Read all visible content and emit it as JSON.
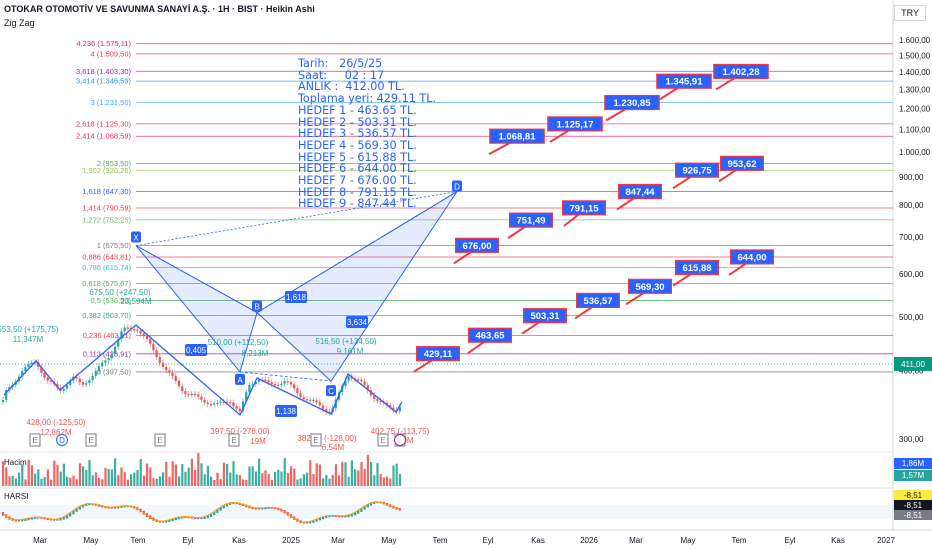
{
  "header": {
    "title": "OTOKAR OTOMOTİV VE SAVUNMA SANAYİ A.Ş. · 1H · BIST · Heikin Ashi",
    "indicator": "Zig Zag",
    "currency": "TRY"
  },
  "info_lines": [
    "Tarih:   26/5/25",
    "Saat:     02 : 17",
    "ANLIK :  412.00 TL.",
    "Toplama yeri: 429.11 TL.",
    "HEDEF 1 - 463.65 TL.",
    "HEDEF 2 - 503.31 TL.",
    "HEDEF 3 - 536.57 TL.",
    "HEDEF 4 - 569.30 TL.",
    "HEDEF 5 - 615.88 TL.",
    "HEDEF 6 - 644.00 TL.",
    "HEDEF 7 - 676.00 TL.",
    "HEDEF 8 - 791.15 TL.",
    "HEDEF 9 - 847.44 TL."
  ],
  "colors": {
    "up": "#26a69a",
    "down": "#ef5350",
    "target_fill": "#2962ff",
    "target_border": "#f23645",
    "harmonic": "#2962ff",
    "last_price": "#089981"
  },
  "chart_data": {
    "type": "candlestick",
    "scale": "log",
    "ylim": [
      280,
      1700
    ],
    "y_ticks": [
      "1.600,00",
      "1.500,00",
      "1.400,00",
      "1.300,00",
      "1.200,00",
      "1.100,00",
      "1.000,00",
      "900,00",
      "800,00",
      "700,00",
      "600,00",
      "500,00",
      "400,00",
      "300,00"
    ],
    "y_tick_values": [
      1600,
      1500,
      1400,
      1300,
      1200,
      1100,
      1000,
      900,
      800,
      700,
      600,
      500,
      400,
      300
    ],
    "x_ticks": [
      "Mar",
      "May",
      "Tem",
      "Eyl",
      "Kas",
      "2025",
      "Mar",
      "May",
      "Tem",
      "Eyl",
      "Kas",
      "2026",
      "Mar",
      "May",
      "Tem",
      "Eyl",
      "Kas",
      "2027"
    ],
    "last_price": 411,
    "last_price_label": "411,00",
    "fib_levels": [
      {
        "label": "4,236 (1.575,11)",
        "value": 1575.11,
        "color": "#e91e63"
      },
      {
        "label": "4 (1.509,50)",
        "value": 1509.5,
        "color": "#f23645"
      },
      {
        "label": "3,618 (1.403,30)",
        "value": 1403.3,
        "color": "#9c27b0"
      },
      {
        "label": "3,414 (1.346,59)",
        "value": 1346.59,
        "color": "#2196f3"
      },
      {
        "label": "3 (1.231,50)",
        "value": 1231.5,
        "color": "#42a5f5"
      },
      {
        "label": "2,618 (1.125,30)",
        "value": 1125.3,
        "color": "#f23645"
      },
      {
        "label": "2,414 (1.068,59)",
        "value": 1068.59,
        "color": "#e91e63"
      },
      {
        "label": "2 (953,50)",
        "value": 953.5,
        "color": "#4caf50"
      },
      {
        "label": "1,902 (926,26)",
        "value": 926.26,
        "color": "#8bc34a"
      },
      {
        "label": "1,618 (847,30)",
        "value": 847.3,
        "color": "#2962ff"
      },
      {
        "label": "1,414 (790,59)",
        "value": 790.59,
        "color": "#f23645"
      },
      {
        "label": "1,272 (752,25)",
        "value": 752.25,
        "color": "#66bb6a"
      },
      {
        "label": "1 (675,50)",
        "value": 675.5,
        "color": "#787b86"
      },
      {
        "label": "0,886 (643,81)",
        "value": 643.81,
        "color": "#f23645"
      },
      {
        "label": "0,786 (615,74)",
        "value": 615.74,
        "color": "#26c6da"
      },
      {
        "label": "0,618 (575,67)",
        "value": 575.67,
        "color": "#4caf50"
      },
      {
        "label": "0,5 (536,50)",
        "value": 536.5,
        "color": "#4caf50"
      },
      {
        "label": "0,382 (503,70)",
        "value": 503.7,
        "color": "#26a69a"
      },
      {
        "label": "0,236 (463,11)",
        "value": 463.11,
        "color": "#f23645"
      },
      {
        "label": "0,113 (428,91)",
        "value": 428.91,
        "color": "#9c27b0"
      },
      {
        "label": "0 (397,50)",
        "value": 397.5,
        "color": "#787b86"
      }
    ],
    "targets": [
      {
        "label": "429,11",
        "value": 429.11
      },
      {
        "label": "463,65",
        "value": 463.65
      },
      {
        "label": "503,31",
        "value": 503.31
      },
      {
        "label": "536,57",
        "value": 536.57
      },
      {
        "label": "569,30",
        "value": 569.3
      },
      {
        "label": "615,88",
        "value": 615.88
      },
      {
        "label": "644,00",
        "value": 644.0
      },
      {
        "label": "676,00",
        "value": 676.0
      },
      {
        "label": "751,49",
        "value": 751.49
      },
      {
        "label": "791,15",
        "value": 791.15
      },
      {
        "label": "847,44",
        "value": 847.44
      },
      {
        "label": "926,75",
        "value": 926.75
      },
      {
        "label": "953,62",
        "value": 953.62
      },
      {
        "label": "1.068,81",
        "value": 1068.81
      },
      {
        "label": "1.125,17",
        "value": 1125.17
      },
      {
        "label": "1.230,85",
        "value": 1230.85
      },
      {
        "label": "1.345,91",
        "value": 1345.91
      },
      {
        "label": "1.402,28",
        "value": 1402.28
      }
    ],
    "pivots": [
      {
        "name": "X",
        "value": 675.5
      },
      {
        "name": "A",
        "value": 397.5
      },
      {
        "name": "B",
        "value": 510.0
      },
      {
        "name": "C",
        "value": 382.5
      },
      {
        "name": "D",
        "value": 847.3
      }
    ],
    "ratio_labels": [
      "0,405",
      "1,618",
      "3,634",
      "1,138"
    ],
    "annotations": [
      "553,50 (+175,75)",
      "11,347M",
      "675,50 (+247,50)",
      "23,594M",
      "510,00 (+112,50)",
      "8,213M",
      "516,50 (+134,50)",
      "9,161M",
      "428,00 (-125,50)",
      "12,862M",
      "397,50 (-278,00)",
      "19M",
      "382,50 (-128,00)",
      "6,54M",
      "402,75 (-113,75)",
      "9M"
    ],
    "volume_label": "Hacim",
    "volume_values": [
      "1,86M",
      "1,57M"
    ],
    "osc_label": "HARSI",
    "osc_values": [
      "-8,51",
      "-8,51",
      "-8,51"
    ],
    "event_markers": [
      "E",
      "D",
      "E",
      "E",
      "E",
      "E",
      "E",
      "E",
      "E"
    ]
  }
}
